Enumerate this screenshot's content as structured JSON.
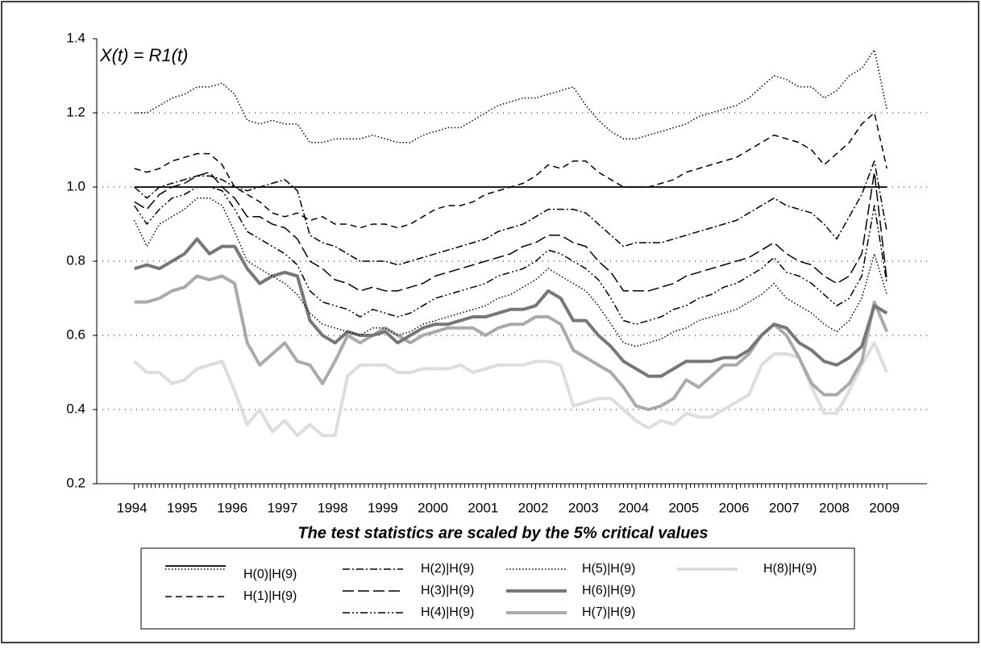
{
  "chart_data": {
    "type": "line",
    "annotation": "X(t) = R1(t)",
    "x_label": "The test statistics are scaled by the 5% critical values",
    "xlim": [
      1993.25,
      2009.8
    ],
    "xticks": [
      1994,
      1995,
      1996,
      1997,
      1998,
      1999,
      2000,
      2001,
      2002,
      2003,
      2004,
      2005,
      2006,
      2007,
      2008,
      2009
    ],
    "ylim": [
      0.2,
      1.4
    ],
    "yticks": [
      0.2,
      0.4,
      0.6,
      0.8,
      {
        "value": 1,
        "label": "1.0"
      },
      1.2,
      1.4
    ],
    "grid": true,
    "reference_line": 1,
    "x": [
      1994,
      1994.25,
      1994.5,
      1994.75,
      1995,
      1995.25,
      1995.5,
      1995.75,
      1996,
      1996.25,
      1996.5,
      1996.75,
      1997,
      1997.25,
      1997.5,
      1997.75,
      1998,
      1998.25,
      1998.5,
      1998.75,
      1999,
      1999.25,
      1999.5,
      1999.75,
      2000,
      2000.25,
      2000.5,
      2000.75,
      2001,
      2001.25,
      2001.5,
      2001.75,
      2002,
      2002.25,
      2002.5,
      2002.75,
      2003,
      2003.25,
      2003.5,
      2003.75,
      2004,
      2004.25,
      2004.5,
      2004.75,
      2005,
      2005.25,
      2005.5,
      2005.75,
      2006,
      2006.25,
      2006.5,
      2006.75,
      2007,
      2007.25,
      2007.5,
      2007.75,
      2008,
      2008.25,
      2008.5,
      2008.75,
      2009
    ],
    "series": [
      {
        "name": "H(0)|H(9)",
        "color": "#000000",
        "style": "dotted",
        "values": [
          1.2,
          1.2,
          1.22,
          1.24,
          1.25,
          1.27,
          1.27,
          1.28,
          1.25,
          1.18,
          1.17,
          1.18,
          1.17,
          1.17,
          1.12,
          1.12,
          1.13,
          1.13,
          1.13,
          1.14,
          1.13,
          1.12,
          1.12,
          1.14,
          1.15,
          1.16,
          1.16,
          1.18,
          1.2,
          1.22,
          1.23,
          1.24,
          1.24,
          1.25,
          1.26,
          1.27,
          1.22,
          1.18,
          1.15,
          1.13,
          1.13,
          1.14,
          1.15,
          1.16,
          1.17,
          1.19,
          1.2,
          1.21,
          1.22,
          1.24,
          1.27,
          1.3,
          1.29,
          1.27,
          1.27,
          1.24,
          1.26,
          1.3,
          1.32,
          1.37,
          1.21
        ]
      },
      {
        "name": "H(1)|H(9)",
        "color": "#000000",
        "style": "dashed",
        "values": [
          1.05,
          1.04,
          1.05,
          1.07,
          1.08,
          1.09,
          1.09,
          1.06,
          1.0,
          0.98,
          0.96,
          0.93,
          0.92,
          0.93,
          0.91,
          0.92,
          0.9,
          0.9,
          0.89,
          0.9,
          0.9,
          0.89,
          0.9,
          0.92,
          0.94,
          0.95,
          0.95,
          0.96,
          0.98,
          0.99,
          1.0,
          1.01,
          1.03,
          1.06,
          1.05,
          1.07,
          1.07,
          1.04,
          1.02,
          1.0,
          1.0,
          1.0,
          1.01,
          1.02,
          1.04,
          1.05,
          1.06,
          1.07,
          1.08,
          1.1,
          1.12,
          1.14,
          1.13,
          1.12,
          1.1,
          1.06,
          1.09,
          1.12,
          1.17,
          1.2,
          1.05
        ]
      },
      {
        "name": "H(2)|H(9)",
        "color": "#000000",
        "style": "dashdot",
        "values": [
          1.0,
          0.97,
          1.0,
          1.01,
          1.02,
          1.03,
          1.03,
          1.02,
          1.0,
          0.99,
          1.0,
          1.01,
          1.02,
          0.99,
          0.87,
          0.85,
          0.84,
          0.82,
          0.8,
          0.8,
          0.8,
          0.79,
          0.8,
          0.81,
          0.82,
          0.83,
          0.84,
          0.85,
          0.86,
          0.88,
          0.89,
          0.9,
          0.92,
          0.94,
          0.94,
          0.94,
          0.93,
          0.9,
          0.87,
          0.84,
          0.85,
          0.85,
          0.85,
          0.86,
          0.87,
          0.88,
          0.89,
          0.9,
          0.91,
          0.93,
          0.95,
          0.97,
          0.95,
          0.94,
          0.93,
          0.9,
          0.86,
          0.92,
          0.98,
          1.07,
          0.88
        ]
      },
      {
        "name": "H(3)|H(9)",
        "color": "#000000",
        "style": "longdash",
        "values": [
          0.96,
          0.94,
          0.98,
          1.0,
          1.01,
          1.03,
          1.04,
          1.0,
          0.97,
          0.92,
          0.92,
          0.9,
          0.89,
          0.86,
          0.8,
          0.78,
          0.75,
          0.74,
          0.72,
          0.73,
          0.72,
          0.72,
          0.73,
          0.74,
          0.76,
          0.77,
          0.78,
          0.79,
          0.8,
          0.81,
          0.82,
          0.84,
          0.85,
          0.87,
          0.87,
          0.85,
          0.84,
          0.8,
          0.77,
          0.72,
          0.72,
          0.72,
          0.73,
          0.74,
          0.76,
          0.77,
          0.78,
          0.79,
          0.8,
          0.81,
          0.83,
          0.85,
          0.82,
          0.8,
          0.79,
          0.76,
          0.74,
          0.76,
          0.82,
          1.04,
          0.75
        ]
      },
      {
        "name": "H(4)|H(9)",
        "color": "#000000",
        "style": "dashdotdot",
        "values": [
          0.95,
          0.9,
          0.94,
          0.97,
          0.98,
          1.0,
          1.0,
          0.99,
          0.94,
          0.88,
          0.86,
          0.84,
          0.82,
          0.79,
          0.72,
          0.69,
          0.68,
          0.67,
          0.65,
          0.67,
          0.66,
          0.65,
          0.66,
          0.68,
          0.7,
          0.71,
          0.72,
          0.73,
          0.74,
          0.76,
          0.77,
          0.78,
          0.8,
          0.83,
          0.82,
          0.8,
          0.78,
          0.75,
          0.7,
          0.64,
          0.63,
          0.64,
          0.65,
          0.67,
          0.68,
          0.7,
          0.71,
          0.73,
          0.74,
          0.76,
          0.78,
          0.81,
          0.77,
          0.76,
          0.74,
          0.71,
          0.68,
          0.7,
          0.76,
          0.95,
          0.74
        ]
      },
      {
        "name": "H(5)|H(9)",
        "color": "#000000",
        "style": "dotted",
        "values": [
          0.91,
          0.84,
          0.9,
          0.92,
          0.94,
          0.97,
          0.97,
          0.95,
          0.88,
          0.8,
          0.78,
          0.76,
          0.74,
          0.71,
          0.66,
          0.63,
          0.62,
          0.61,
          0.6,
          0.62,
          0.62,
          0.6,
          0.61,
          0.63,
          0.64,
          0.65,
          0.66,
          0.67,
          0.68,
          0.7,
          0.71,
          0.73,
          0.75,
          0.78,
          0.76,
          0.74,
          0.72,
          0.68,
          0.63,
          0.58,
          0.57,
          0.58,
          0.59,
          0.61,
          0.62,
          0.64,
          0.65,
          0.66,
          0.67,
          0.69,
          0.71,
          0.74,
          0.7,
          0.68,
          0.66,
          0.63,
          0.61,
          0.64,
          0.7,
          0.82,
          0.71
        ]
      },
      {
        "name": "H(6)|H(9)",
        "color": "#777777",
        "style": "thick",
        "values": [
          0.78,
          0.79,
          0.78,
          0.8,
          0.82,
          0.86,
          0.82,
          0.84,
          0.84,
          0.78,
          0.74,
          0.76,
          0.77,
          0.76,
          0.64,
          0.6,
          0.58,
          0.61,
          0.6,
          0.6,
          0.61,
          0.58,
          0.6,
          0.62,
          0.63,
          0.63,
          0.64,
          0.65,
          0.65,
          0.66,
          0.67,
          0.67,
          0.68,
          0.72,
          0.7,
          0.64,
          0.64,
          0.6,
          0.57,
          0.53,
          0.51,
          0.49,
          0.49,
          0.51,
          0.53,
          0.53,
          0.53,
          0.54,
          0.54,
          0.56,
          0.6,
          0.63,
          0.62,
          0.58,
          0.56,
          0.53,
          0.52,
          0.54,
          0.57,
          0.68,
          0.66
        ]
      },
      {
        "name": "H(7)|H(9)",
        "color": "#aaaaaa",
        "style": "thick",
        "values": [
          0.69,
          0.69,
          0.7,
          0.72,
          0.73,
          0.76,
          0.75,
          0.76,
          0.74,
          0.58,
          0.52,
          0.55,
          0.58,
          0.53,
          0.52,
          0.47,
          0.53,
          0.6,
          0.58,
          0.6,
          0.62,
          0.6,
          0.58,
          0.6,
          0.61,
          0.62,
          0.62,
          0.62,
          0.6,
          0.62,
          0.63,
          0.63,
          0.65,
          0.65,
          0.63,
          0.56,
          0.54,
          0.52,
          0.5,
          0.46,
          0.41,
          0.4,
          0.41,
          0.43,
          0.48,
          0.46,
          0.49,
          0.52,
          0.52,
          0.55,
          0.6,
          0.63,
          0.6,
          0.54,
          0.47,
          0.44,
          0.44,
          0.47,
          0.53,
          0.69,
          0.61
        ]
      },
      {
        "name": "H(8)|H(9)",
        "color": "#dddddd",
        "style": "thick",
        "values": [
          0.53,
          0.5,
          0.5,
          0.47,
          0.48,
          0.51,
          0.52,
          0.53,
          0.45,
          0.36,
          0.4,
          0.34,
          0.37,
          0.33,
          0.36,
          0.33,
          0.33,
          0.49,
          0.52,
          0.52,
          0.52,
          0.5,
          0.5,
          0.51,
          0.51,
          0.51,
          0.52,
          0.5,
          0.51,
          0.52,
          0.52,
          0.52,
          0.53,
          0.53,
          0.52,
          0.41,
          0.42,
          0.43,
          0.43,
          0.4,
          0.37,
          0.35,
          0.37,
          0.36,
          0.39,
          0.38,
          0.38,
          0.4,
          0.42,
          0.44,
          0.52,
          0.55,
          0.55,
          0.54,
          0.46,
          0.39,
          0.39,
          0.45,
          0.52,
          0.58,
          0.5
        ]
      }
    ]
  }
}
